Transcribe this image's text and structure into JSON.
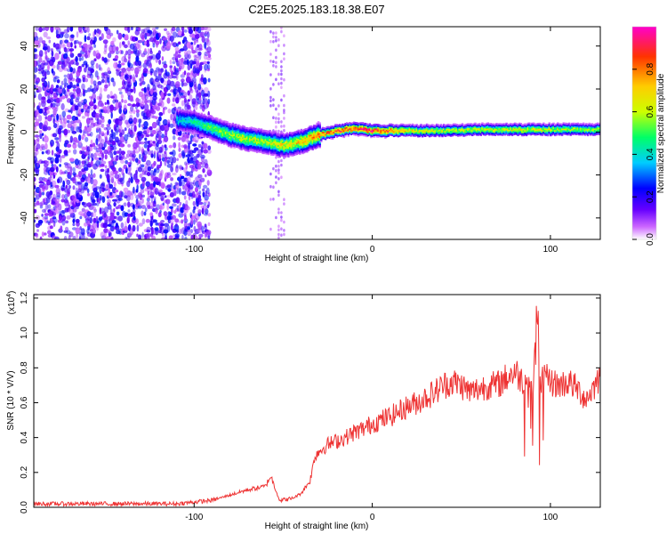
{
  "title": "C2E5.2025.183.18.38.E07",
  "chart_data": [
    {
      "type": "heatmap",
      "xlabel": "Height of straight line (km)",
      "ylabel": "Frequency (Hz)",
      "xlim": [
        -190,
        128
      ],
      "ylim": [
        -50,
        49
      ],
      "xticks": [
        -100,
        0,
        100
      ],
      "yticks": [
        -40,
        -20,
        0,
        20,
        40
      ],
      "colorbar": {
        "label": "Normalized spectral amplitude",
        "range": [
          0,
          1
        ],
        "ticks": [
          "0.0",
          "0.2",
          "0.4",
          "0.6",
          "0.8"
        ],
        "colors": [
          "#ffffff",
          "#cc66ff",
          "#6600ff",
          "#0000ff",
          "#00ccff",
          "#00ff66",
          "#ccff00",
          "#ffcc00",
          "#ff3300",
          "#ff00cc"
        ]
      },
      "ridge": {
        "x": [
          -110,
          -100,
          -90,
          -80,
          -70,
          -60,
          -50,
          -40,
          -30,
          -20,
          -10,
          0,
          20,
          40,
          60,
          80,
          100,
          128
        ],
        "y": [
          6,
          5,
          2,
          -1,
          -3,
          -4,
          -6,
          -4,
          -1,
          1,
          2,
          1,
          1,
          1,
          1.5,
          1.5,
          1.5,
          1.5
        ],
        "peak_amplitude": [
          0.4,
          0.45,
          0.55,
          0.6,
          0.65,
          0.6,
          0.7,
          0.75,
          0.85,
          0.9,
          0.95,
          1.0,
          0.7,
          0.65,
          0.65,
          0.7,
          0.65,
          0.6
        ]
      },
      "noise_region": {
        "x_range": [
          -190,
          -92
        ],
        "amplitude": [
          0.05,
          0.25
        ]
      },
      "noise_band": {
        "x_range": [
          -57,
          -48
        ],
        "amplitude": [
          0.05,
          0.15
        ]
      }
    },
    {
      "type": "line",
      "xlabel": "Height of straight line (km)",
      "ylabel": "SNR (10 * V/V)",
      "y_multiplier": "(x10",
      "y_multiplier_exp": "4",
      "xlim": [
        -190,
        128
      ],
      "ylim": [
        0,
        1.22
      ],
      "xticks": [
        -100,
        0,
        100
      ],
      "yticks": [
        "0.0",
        "0.2",
        "0.4",
        "0.6",
        "0.8",
        "1.0",
        "1.2"
      ],
      "color": "#ee3333",
      "series": [
        {
          "x": [
            -190,
            -150,
            -110,
            -90,
            -80,
            -70,
            -60,
            -57,
            -52,
            -45,
            -40,
            -35,
            -32,
            -30,
            -25,
            -20,
            -15,
            -10,
            -5,
            0,
            5,
            10,
            15,
            20,
            25,
            30,
            35,
            40,
            45,
            50,
            55,
            60,
            65,
            70,
            75,
            80,
            85,
            88,
            90,
            92,
            93,
            94,
            96,
            100,
            105,
            110,
            115,
            120,
            125,
            128
          ],
          "y": [
            0.02,
            0.02,
            0.02,
            0.04,
            0.07,
            0.1,
            0.12,
            0.18,
            0.04,
            0.05,
            0.08,
            0.15,
            0.3,
            0.32,
            0.36,
            0.38,
            0.4,
            0.43,
            0.45,
            0.48,
            0.5,
            0.52,
            0.55,
            0.58,
            0.6,
            0.63,
            0.66,
            0.7,
            0.72,
            0.7,
            0.66,
            0.68,
            0.7,
            0.7,
            0.74,
            0.78,
            0.72,
            0.8,
            0.6,
            1.05,
            1.2,
            0.7,
            0.75,
            0.72,
            0.7,
            0.72,
            0.68,
            0.62,
            0.7,
            0.76
          ]
        }
      ]
    }
  ]
}
